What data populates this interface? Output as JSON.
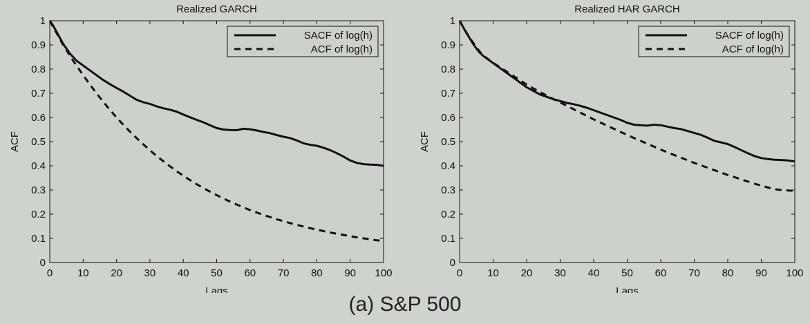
{
  "caption": {
    "label": "(a)",
    "title": "S&P 500"
  },
  "chart_data": [
    {
      "type": "line",
      "title": "Realized GARCH",
      "xlabel": "Lags",
      "ylabel": "ACF",
      "xlim": [
        0,
        100
      ],
      "ylim": [
        0,
        1
      ],
      "xticks": [
        0,
        10,
        20,
        30,
        40,
        50,
        60,
        70,
        80,
        90,
        100
      ],
      "yticks": [
        0,
        0.1,
        0.2,
        0.3,
        0.4,
        0.5,
        0.6,
        0.7,
        0.8,
        0.9,
        1
      ],
      "grid": false,
      "legend_position": "top-right",
      "x": [
        0,
        1,
        2,
        3,
        4,
        5,
        6,
        7,
        8,
        10,
        12,
        14,
        16,
        18,
        20,
        22,
        24,
        26,
        28,
        30,
        32,
        34,
        36,
        38,
        40,
        42,
        44,
        46,
        48,
        50,
        52,
        54,
        56,
        58,
        60,
        62,
        64,
        66,
        68,
        70,
        72,
        74,
        76,
        78,
        80,
        82,
        84,
        86,
        88,
        90,
        92,
        94,
        96,
        98,
        100
      ],
      "series": [
        {
          "name": "SACF of log(h)",
          "style": "solid",
          "color": "#111111",
          "values": [
            1.0,
            0.98,
            0.955,
            0.93,
            0.905,
            0.885,
            0.865,
            0.85,
            0.835,
            0.815,
            0.795,
            0.775,
            0.755,
            0.738,
            0.722,
            0.707,
            0.69,
            0.673,
            0.663,
            0.656,
            0.646,
            0.638,
            0.632,
            0.624,
            0.612,
            0.601,
            0.59,
            0.58,
            0.568,
            0.556,
            0.55,
            0.548,
            0.547,
            0.553,
            0.551,
            0.546,
            0.54,
            0.535,
            0.527,
            0.52,
            0.515,
            0.505,
            0.493,
            0.487,
            0.483,
            0.475,
            0.465,
            0.452,
            0.438,
            0.422,
            0.412,
            0.407,
            0.405,
            0.404,
            0.4
          ]
        },
        {
          "name": "ACF of log(h)",
          "style": "dashed",
          "color": "#111111",
          "values": [
            1.0,
            0.975,
            0.95,
            0.925,
            0.9,
            0.878,
            0.856,
            0.835,
            0.815,
            0.775,
            0.737,
            0.7,
            0.665,
            0.632,
            0.6,
            0.57,
            0.542,
            0.515,
            0.489,
            0.464,
            0.441,
            0.419,
            0.398,
            0.378,
            0.359,
            0.341,
            0.324,
            0.308,
            0.293,
            0.279,
            0.265,
            0.252,
            0.24,
            0.228,
            0.217,
            0.207,
            0.197,
            0.188,
            0.179,
            0.171,
            0.163,
            0.156,
            0.149,
            0.142,
            0.136,
            0.13,
            0.124,
            0.119,
            0.114,
            0.109,
            0.104,
            0.1,
            0.096,
            0.092,
            0.089
          ]
        }
      ]
    },
    {
      "type": "line",
      "title": "Realized HAR GARCH",
      "xlabel": "Lags",
      "ylabel": "ACF",
      "xlim": [
        0,
        100
      ],
      "ylim": [
        0,
        1
      ],
      "xticks": [
        0,
        10,
        20,
        30,
        40,
        50,
        60,
        70,
        80,
        90,
        100
      ],
      "yticks": [
        0,
        0.1,
        0.2,
        0.3,
        0.4,
        0.5,
        0.6,
        0.7,
        0.8,
        0.9,
        1
      ],
      "grid": false,
      "legend_position": "top-right",
      "x": [
        0,
        1,
        2,
        3,
        4,
        5,
        6,
        7,
        8,
        10,
        12,
        14,
        16,
        18,
        20,
        22,
        24,
        26,
        28,
        30,
        32,
        34,
        36,
        38,
        40,
        42,
        44,
        46,
        48,
        50,
        52,
        54,
        56,
        58,
        60,
        62,
        64,
        66,
        68,
        70,
        72,
        74,
        76,
        78,
        80,
        82,
        84,
        86,
        88,
        90,
        92,
        94,
        96,
        98,
        100
      ],
      "series": [
        {
          "name": "SACF of log(h)",
          "style": "solid",
          "color": "#111111",
          "values": [
            1.0,
            0.975,
            0.95,
            0.928,
            0.905,
            0.885,
            0.868,
            0.855,
            0.845,
            0.825,
            0.805,
            0.785,
            0.765,
            0.745,
            0.725,
            0.71,
            0.695,
            0.685,
            0.675,
            0.668,
            0.66,
            0.655,
            0.648,
            0.64,
            0.63,
            0.62,
            0.61,
            0.6,
            0.59,
            0.578,
            0.57,
            0.568,
            0.566,
            0.57,
            0.568,
            0.562,
            0.556,
            0.552,
            0.544,
            0.536,
            0.528,
            0.516,
            0.503,
            0.497,
            0.49,
            0.478,
            0.465,
            0.452,
            0.44,
            0.432,
            0.428,
            0.425,
            0.424,
            0.422,
            0.418
          ]
        },
        {
          "name": "ACF of log(h)",
          "style": "dashed",
          "color": "#111111",
          "values": [
            1.0,
            0.975,
            0.952,
            0.93,
            0.91,
            0.89,
            0.872,
            0.858,
            0.846,
            0.826,
            0.808,
            0.79,
            0.772,
            0.754,
            0.736,
            0.72,
            0.705,
            0.69,
            0.676,
            0.662,
            0.648,
            0.634,
            0.62,
            0.606,
            0.592,
            0.579,
            0.566,
            0.553,
            0.54,
            0.528,
            0.515,
            0.503,
            0.491,
            0.479,
            0.467,
            0.456,
            0.445,
            0.434,
            0.423,
            0.412,
            0.402,
            0.392,
            0.382,
            0.372,
            0.362,
            0.353,
            0.344,
            0.335,
            0.326,
            0.318,
            0.31,
            0.303,
            0.3,
            0.298,
            0.296
          ]
        }
      ]
    }
  ]
}
